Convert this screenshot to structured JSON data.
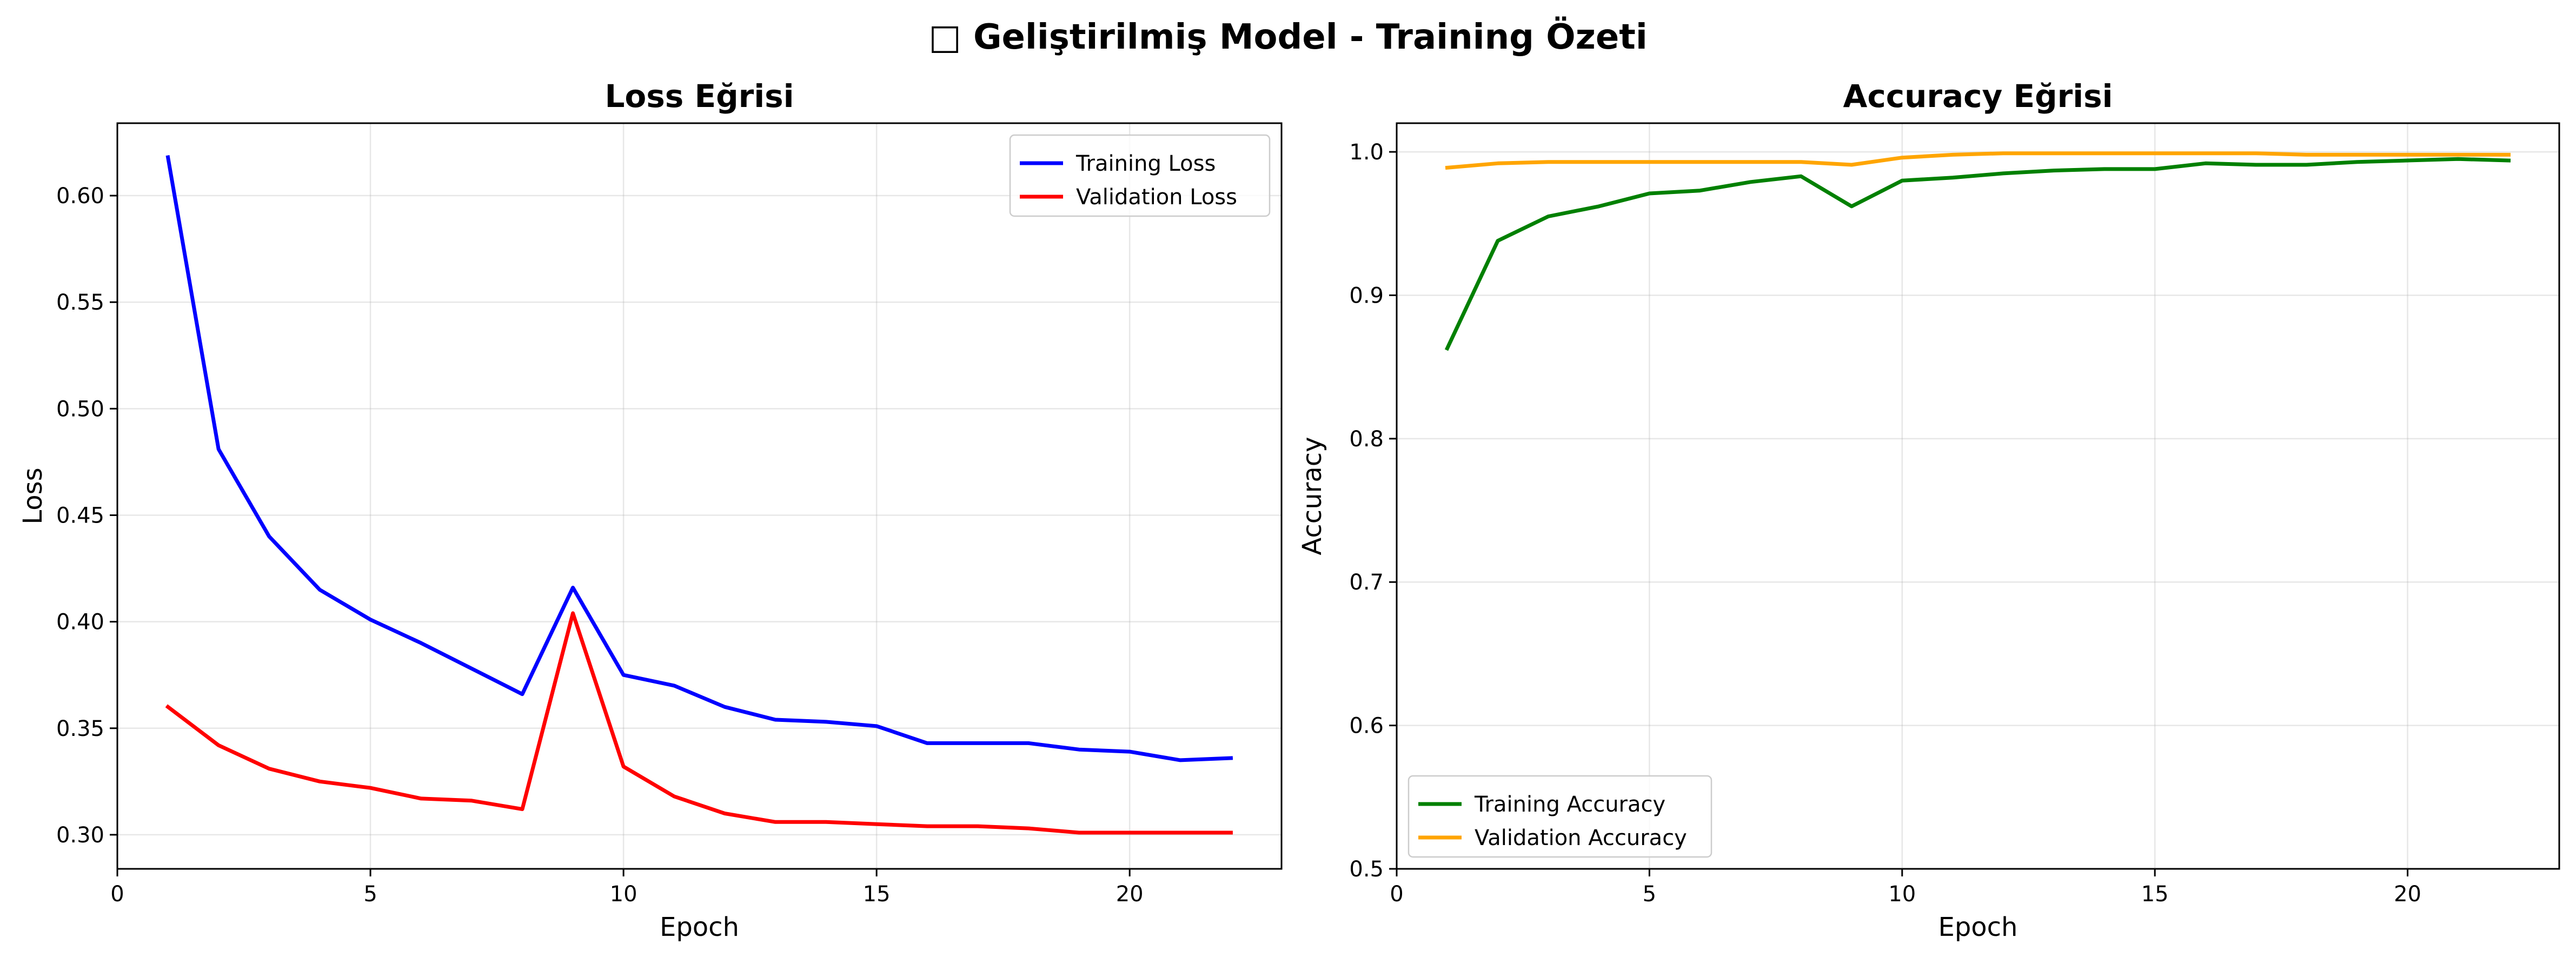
{
  "figure": {
    "title": "□ Geliştirilmiş Model - Training Özeti"
  },
  "chart_data": [
    {
      "type": "line",
      "title": "Loss Eğrisi",
      "xlabel": "Epoch",
      "ylabel": "Loss",
      "xlim": [
        0,
        23
      ],
      "ylim": [
        0.284,
        0.634
      ],
      "xticks": [
        0,
        5,
        10,
        15,
        20
      ],
      "yticks": [
        0.3,
        0.35,
        0.4,
        0.45,
        0.5,
        0.55,
        0.6
      ],
      "ytick_labels": [
        "0.30",
        "0.35",
        "0.40",
        "0.45",
        "0.50",
        "0.55",
        "0.60"
      ],
      "grid": true,
      "legend_position": "top-right",
      "x": [
        1,
        2,
        3,
        4,
        5,
        6,
        7,
        8,
        9,
        10,
        11,
        12,
        13,
        14,
        15,
        16,
        17,
        18,
        19,
        20,
        21,
        22
      ],
      "series": [
        {
          "name": "Training Loss",
          "color": "#0000ff",
          "values": [
            0.618,
            0.481,
            0.44,
            0.415,
            0.401,
            0.39,
            0.378,
            0.366,
            0.416,
            0.375,
            0.37,
            0.36,
            0.354,
            0.353,
            0.351,
            0.343,
            0.343,
            0.343,
            0.34,
            0.339,
            0.335,
            0.336
          ]
        },
        {
          "name": "Validation Loss",
          "color": "#ff0000",
          "values": [
            0.36,
            0.342,
            0.331,
            0.325,
            0.322,
            0.317,
            0.316,
            0.312,
            0.404,
            0.332,
            0.318,
            0.31,
            0.306,
            0.306,
            0.305,
            0.304,
            0.304,
            0.303,
            0.301,
            0.301,
            0.301,
            0.301
          ]
        }
      ]
    },
    {
      "type": "line",
      "title": "Accuracy Eğrisi",
      "xlabel": "Epoch",
      "ylabel": "Accuracy",
      "xlim": [
        0,
        23
      ],
      "ylim": [
        0.5,
        1.02
      ],
      "xticks": [
        0,
        5,
        10,
        15,
        20
      ],
      "yticks": [
        0.5,
        0.6,
        0.7,
        0.8,
        0.9,
        1.0
      ],
      "ytick_labels": [
        "0.5",
        "0.6",
        "0.7",
        "0.8",
        "0.9",
        "1.0"
      ],
      "grid": true,
      "legend_position": "bottom-left",
      "x": [
        1,
        2,
        3,
        4,
        5,
        6,
        7,
        8,
        9,
        10,
        11,
        12,
        13,
        14,
        15,
        16,
        17,
        18,
        19,
        20,
        21,
        22
      ],
      "series": [
        {
          "name": "Training Accuracy",
          "color": "#008000",
          "values": [
            0.863,
            0.938,
            0.955,
            0.962,
            0.971,
            0.973,
            0.979,
            0.983,
            0.962,
            0.98,
            0.982,
            0.985,
            0.987,
            0.988,
            0.988,
            0.992,
            0.991,
            0.991,
            0.993,
            0.994,
            0.995,
            0.994
          ]
        },
        {
          "name": "Validation Accuracy",
          "color": "#ffa500",
          "values": [
            0.989,
            0.992,
            0.993,
            0.993,
            0.993,
            0.993,
            0.993,
            0.993,
            0.991,
            0.996,
            0.998,
            0.999,
            0.999,
            0.999,
            0.999,
            0.999,
            0.999,
            0.998,
            0.998,
            0.998,
            0.998,
            0.998
          ]
        }
      ]
    }
  ]
}
